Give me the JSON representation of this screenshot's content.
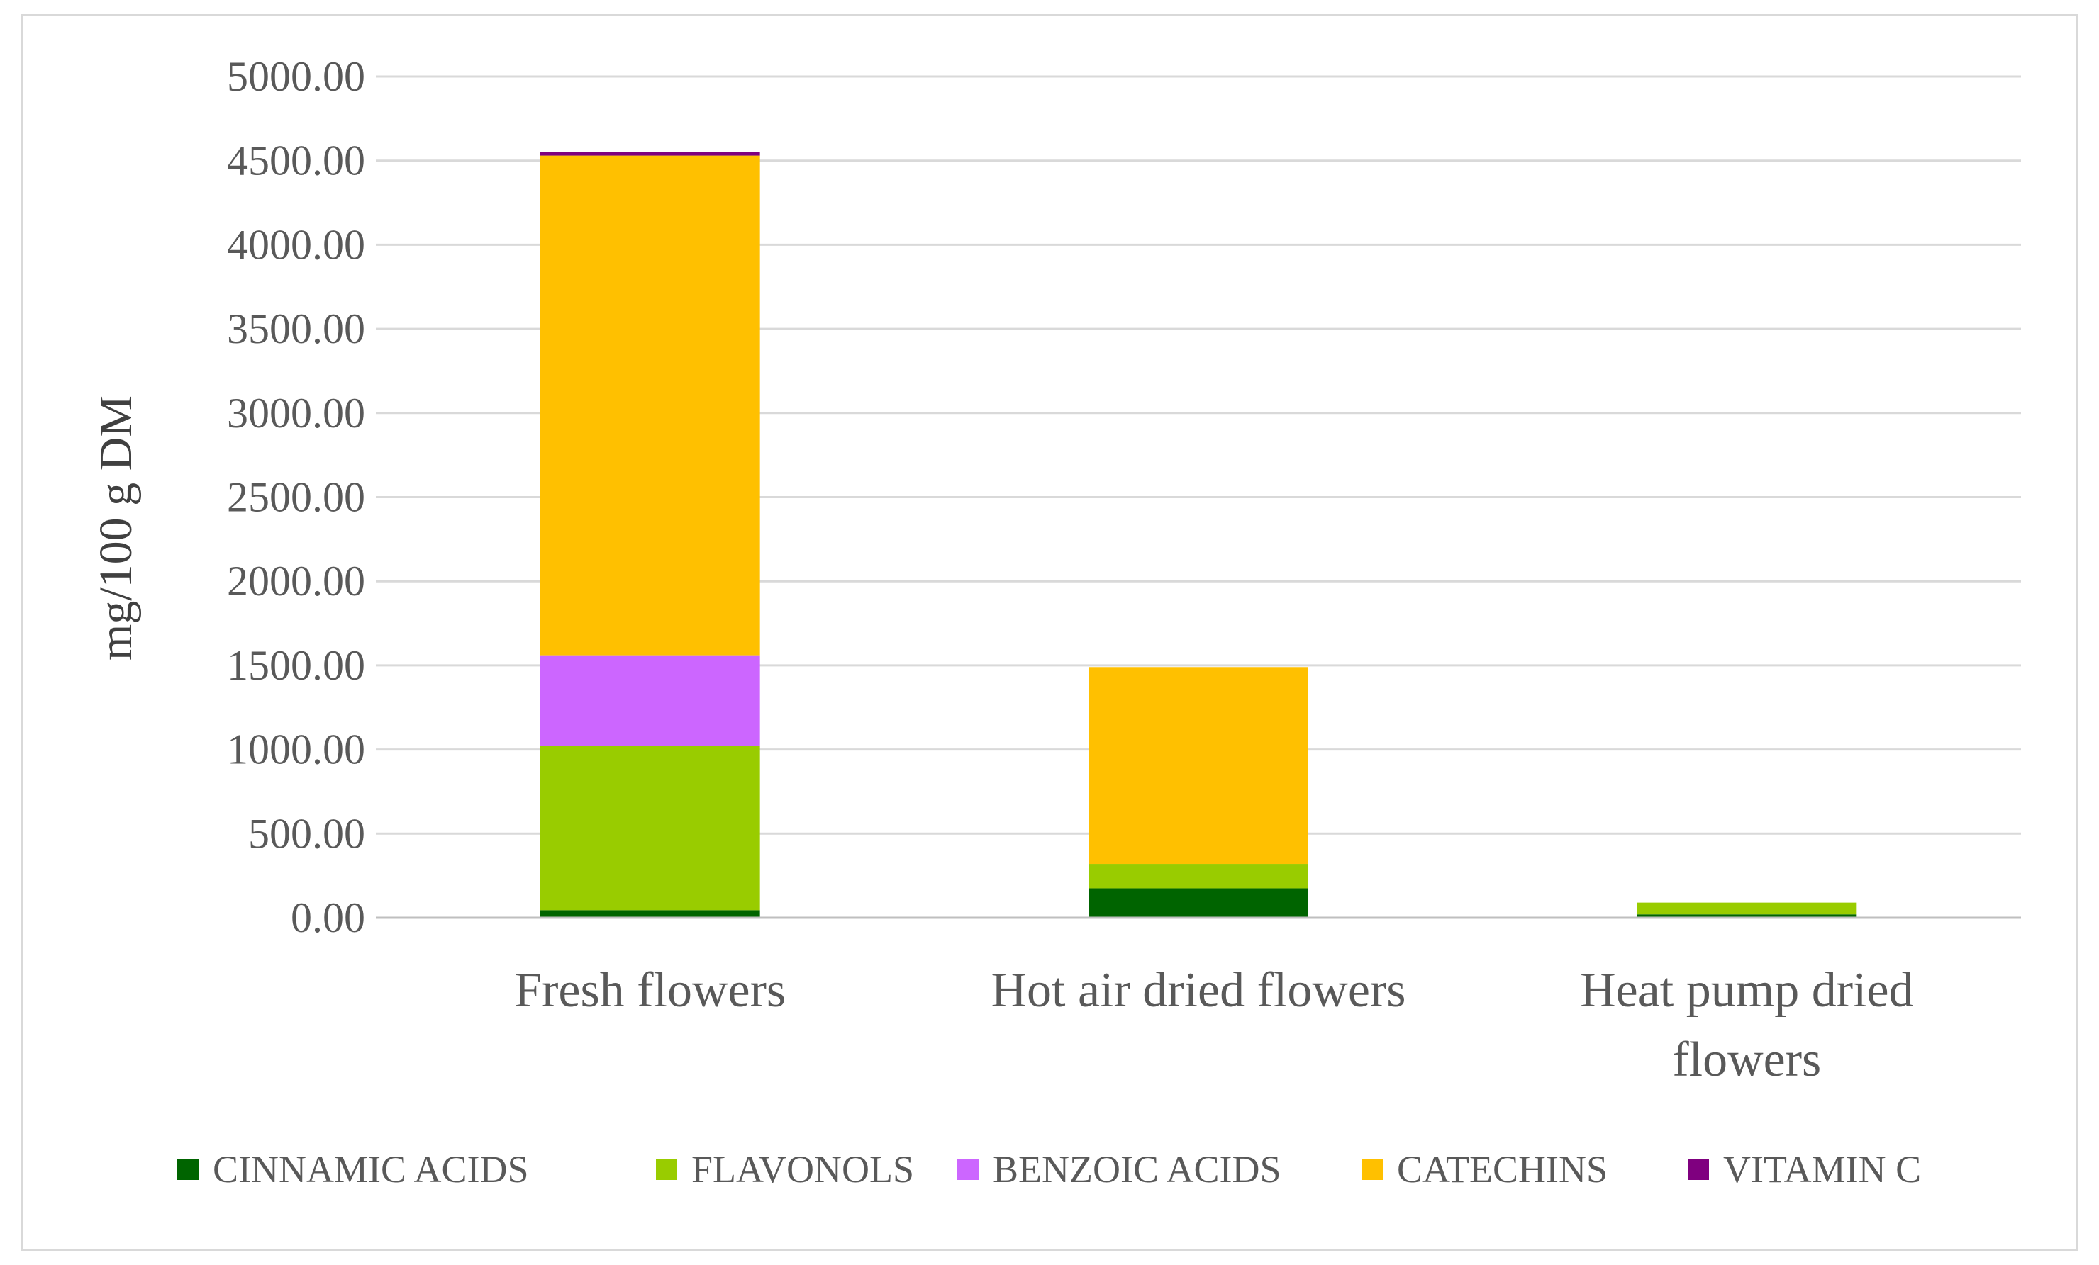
{
  "chart_data": {
    "type": "bar",
    "stacked": true,
    "title": "",
    "xlabel": "",
    "ylabel": "mg/100 g DM",
    "ylim": [
      0,
      5000
    ],
    "yticks": [
      0,
      500,
      1000,
      1500,
      2000,
      2500,
      3000,
      3500,
      4000,
      4500,
      5000
    ],
    "ytick_labels": [
      "0.00",
      "500.00",
      "1000.00",
      "1500.00",
      "2000.00",
      "2500.00",
      "3000.00",
      "3500.00",
      "4000.00",
      "4500.00",
      "5000.00"
    ],
    "grid": true,
    "legend_position": "bottom",
    "categories": [
      {
        "lines": [
          "Fresh flowers"
        ]
      },
      {
        "lines": [
          "Hot air dried flowers"
        ]
      },
      {
        "lines": [
          "Heat pump dried",
          "flowers"
        ]
      }
    ],
    "series": [
      {
        "name": "CINNAMIC ACIDS",
        "color": "#006400",
        "values": [
          45,
          175,
          20
        ]
      },
      {
        "name": "FLAVONOLS",
        "color": "#99cc00",
        "values": [
          975,
          145,
          70
        ]
      },
      {
        "name": "BENZOIC ACIDS",
        "color": "#cc66ff",
        "values": [
          540,
          0,
          0
        ]
      },
      {
        "name": "CATECHINS",
        "color": "#ffc000",
        "values": [
          2970,
          1170,
          0
        ]
      },
      {
        "name": "VITAMIN C",
        "color": "#7f007f",
        "values": [
          20,
          0,
          0
        ]
      }
    ]
  }
}
